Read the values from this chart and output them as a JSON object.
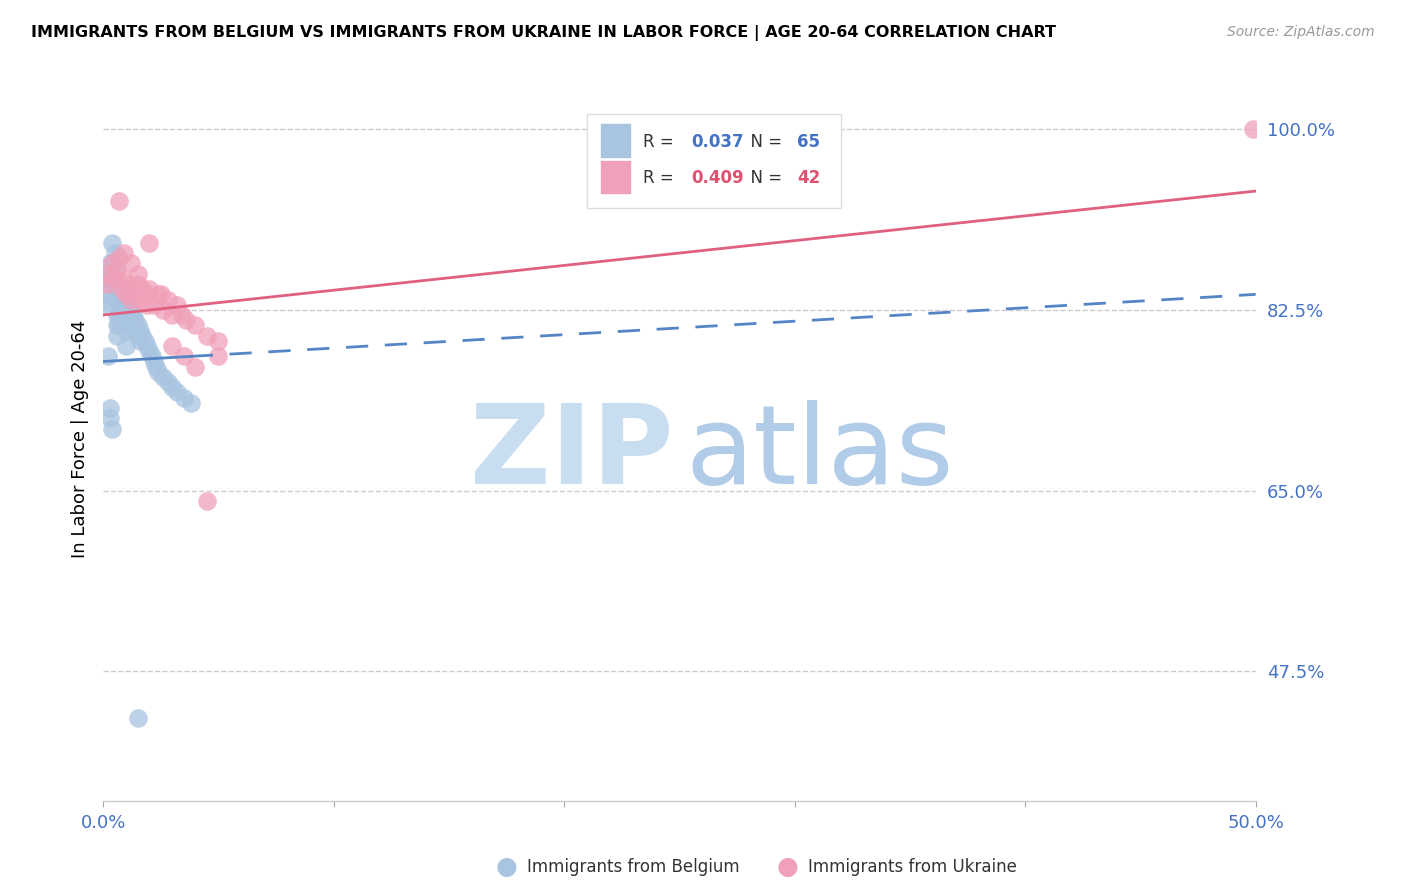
{
  "title": "IMMIGRANTS FROM BELGIUM VS IMMIGRANTS FROM UKRAINE IN LABOR FORCE | AGE 20-64 CORRELATION CHART",
  "source": "Source: ZipAtlas.com",
  "ylabel": "In Labor Force | Age 20-64",
  "xlim": [
    0.0,
    0.5
  ],
  "ylim": [
    0.35,
    1.05
  ],
  "xticks": [
    0.0,
    0.1,
    0.2,
    0.3,
    0.4,
    0.5
  ],
  "xticklabels": [
    "0.0%",
    "",
    "",
    "",
    "",
    "50.0%"
  ],
  "ytick_positions": [
    0.475,
    0.65,
    0.825,
    1.0
  ],
  "ytick_labels": [
    "47.5%",
    "65.0%",
    "82.5%",
    "100.0%"
  ],
  "belgium_color": "#a8c4e0",
  "ukraine_color": "#f0a0b8",
  "belgium_line_color": "#5585c5",
  "ukraine_line_color": "#e06080",
  "axis_label_color": "#4472c4",
  "watermark_zip_color": "#c8ddf0",
  "watermark_atlas_color": "#b0cce8",
  "belgium_x": [
    0.001,
    0.002,
    0.002,
    0.003,
    0.003,
    0.003,
    0.004,
    0.004,
    0.004,
    0.005,
    0.005,
    0.005,
    0.006,
    0.006,
    0.006,
    0.006,
    0.007,
    0.007,
    0.007,
    0.007,
    0.008,
    0.008,
    0.008,
    0.008,
    0.009,
    0.009,
    0.009,
    0.009,
    0.01,
    0.01,
    0.01,
    0.01,
    0.011,
    0.011,
    0.011,
    0.012,
    0.012,
    0.013,
    0.013,
    0.014,
    0.014,
    0.015,
    0.015,
    0.016,
    0.016,
    0.017,
    0.018,
    0.019,
    0.02,
    0.021,
    0.022,
    0.023,
    0.024,
    0.026,
    0.028,
    0.03,
    0.032,
    0.035,
    0.038,
    0.002,
    0.003,
    0.003,
    0.004,
    0.01,
    0.015
  ],
  "belgium_y": [
    0.835,
    0.86,
    0.83,
    0.87,
    0.855,
    0.84,
    0.89,
    0.87,
    0.85,
    0.88,
    0.865,
    0.85,
    0.835,
    0.82,
    0.81,
    0.8,
    0.84,
    0.83,
    0.82,
    0.81,
    0.845,
    0.835,
    0.825,
    0.815,
    0.84,
    0.83,
    0.82,
    0.81,
    0.835,
    0.825,
    0.815,
    0.805,
    0.83,
    0.82,
    0.81,
    0.825,
    0.815,
    0.82,
    0.81,
    0.815,
    0.805,
    0.81,
    0.8,
    0.805,
    0.795,
    0.8,
    0.795,
    0.79,
    0.785,
    0.78,
    0.775,
    0.77,
    0.765,
    0.76,
    0.755,
    0.75,
    0.745,
    0.74,
    0.735,
    0.78,
    0.73,
    0.72,
    0.71,
    0.79,
    0.43
  ],
  "ukraine_x": [
    0.002,
    0.003,
    0.004,
    0.005,
    0.006,
    0.007,
    0.008,
    0.009,
    0.01,
    0.011,
    0.012,
    0.013,
    0.014,
    0.015,
    0.016,
    0.017,
    0.018,
    0.019,
    0.02,
    0.022,
    0.024,
    0.026,
    0.028,
    0.03,
    0.032,
    0.034,
    0.036,
    0.04,
    0.045,
    0.05,
    0.007,
    0.009,
    0.012,
    0.015,
    0.02,
    0.025,
    0.03,
    0.035,
    0.04,
    0.045,
    0.05,
    0.499
  ],
  "ukraine_y": [
    0.85,
    0.86,
    0.87,
    0.855,
    0.865,
    0.875,
    0.845,
    0.855,
    0.84,
    0.85,
    0.835,
    0.845,
    0.84,
    0.85,
    0.835,
    0.845,
    0.84,
    0.83,
    0.845,
    0.83,
    0.84,
    0.825,
    0.835,
    0.82,
    0.83,
    0.82,
    0.815,
    0.81,
    0.8,
    0.795,
    0.93,
    0.88,
    0.87,
    0.86,
    0.89,
    0.84,
    0.79,
    0.78,
    0.77,
    0.64,
    0.78,
    1.0
  ],
  "bel_trend_x0": 0.0,
  "bel_trend_y0": 0.775,
  "bel_trend_x1": 0.5,
  "bel_trend_y1": 0.84,
  "ukr_trend_x0": 0.0,
  "ukr_trend_y0": 0.82,
  "ukr_trend_x1": 0.5,
  "ukr_trend_y1": 0.94
}
